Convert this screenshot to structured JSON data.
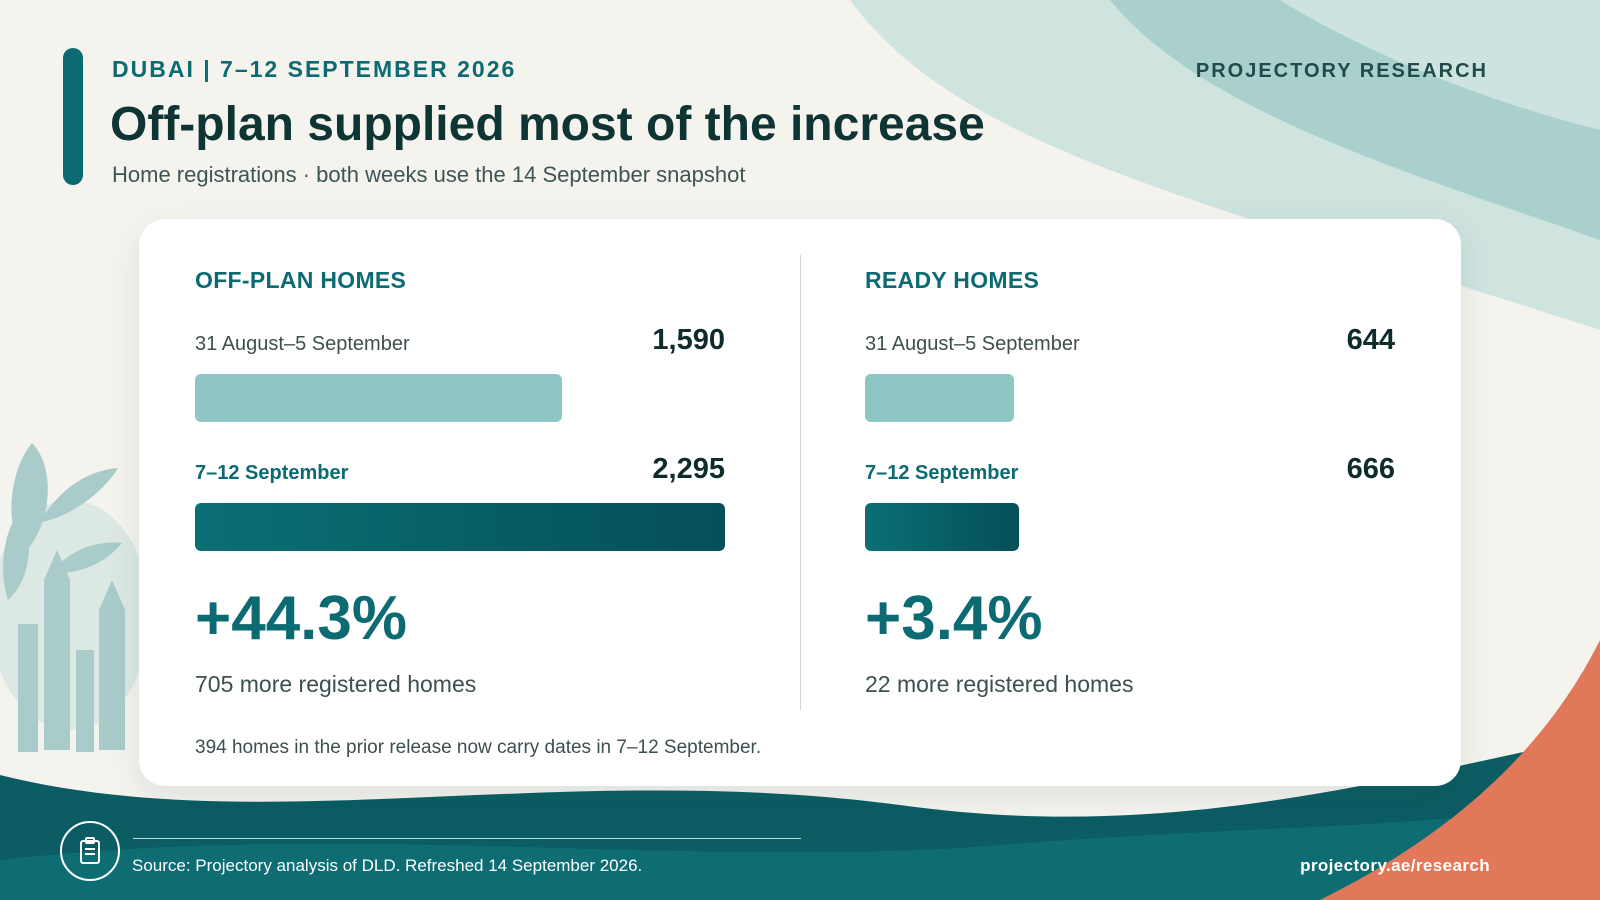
{
  "header": {
    "eyebrow": "DUBAI | 7–12 SEPTEMBER 2026",
    "brand": "PROJECTORY RESEARCH",
    "title": "Off-plan supplied most of the increase",
    "subtitle": "Home registrations · both weeks use the 14 September snapshot"
  },
  "chart_data": {
    "type": "bar",
    "orientation": "horizontal",
    "categories": [
      "31 August–5 September",
      "7–12 September"
    ],
    "panels": [
      {
        "title": "OFF-PLAN HOMES",
        "labels": [
          "31 August–5 September",
          "7–12 September"
        ],
        "values": [
          1590,
          2295
        ],
        "value_labels": [
          "1,590",
          "2,295"
        ],
        "change_pct": "+44.3%",
        "change_note": "705 more registered homes"
      },
      {
        "title": "READY HOMES",
        "labels": [
          "31 August–5 September",
          "7–12 September"
        ],
        "values": [
          644,
          666
        ],
        "value_labels": [
          "644",
          "666"
        ],
        "change_pct": "+3.4%",
        "change_note": "22 more registered homes"
      }
    ],
    "xlim": [
      0,
      2295
    ],
    "colors": {
      "prior_week": "#8ec6c3",
      "current_week": "#0a6f75",
      "accent": "#0c6b72"
    }
  },
  "footnote": "394 homes in the prior release now carry dates in 7–12 September.",
  "footer": {
    "icon": "clipboard-icon",
    "source": "Source: Projectory analysis of DLD. Refreshed 14 September 2026.",
    "url": "projectory.ae/research"
  }
}
